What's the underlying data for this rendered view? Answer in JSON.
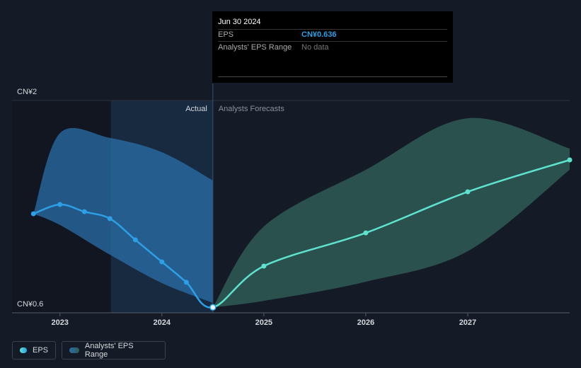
{
  "chart_data": {
    "type": "line",
    "x": [
      2022.74,
      2023.0,
      2023.24,
      2023.49,
      2023.74,
      2024.0,
      2024.24,
      2024.5,
      2025.0,
      2026.0,
      2027.0,
      2028.0
    ],
    "series": [
      {
        "name": "EPS",
        "color": "#2d9fe6",
        "forecast_color": "#5de3cf",
        "values": [
          1.253,
          1.314,
          1.267,
          1.221,
          1.081,
          0.936,
          0.801,
          0.636,
          0.908,
          1.127,
          1.398,
          1.608
        ]
      }
    ],
    "range": {
      "name": "Analysts' EPS Range",
      "color": "#2a6fa8",
      "forecast_color": "#2f5b56",
      "actual": {
        "x": [
          2022.74,
          2023.0,
          2023.49,
          2024.0,
          2024.5
        ],
        "high": [
          1.253,
          1.785,
          1.753,
          1.659,
          1.473
        ],
        "low": [
          1.253,
          1.179,
          0.983,
          0.796,
          0.665
        ]
      },
      "forecast": {
        "x": [
          2024.5,
          2025.0,
          2026.0,
          2027.0,
          2028.0
        ],
        "high": [
          0.636,
          1.169,
          1.543,
          1.883,
          1.683
        ],
        "low": [
          0.636,
          0.679,
          0.805,
          1.006,
          1.543
        ]
      }
    },
    "divider_x": 2024.5,
    "actual_label": "Actual",
    "forecast_label": "Analysts Forecasts",
    "xlim": [
      2022.53,
      2028.0
    ],
    "xticks": [
      2023,
      2024,
      2025,
      2026,
      2027
    ],
    "ylim": [
      0.6,
      2
    ],
    "yticks": [
      {
        "value": 2,
        "label": "CN¥2"
      },
      {
        "value": 0.6,
        "label": "CN¥0.6"
      }
    ],
    "grid": true,
    "tooltip": {
      "date": "Jun 30 2024",
      "rows": [
        {
          "label": "EPS",
          "value": "CN¥0.636"
        },
        {
          "label": "Analysts' EPS Range",
          "value": "No data"
        }
      ]
    }
  }
}
